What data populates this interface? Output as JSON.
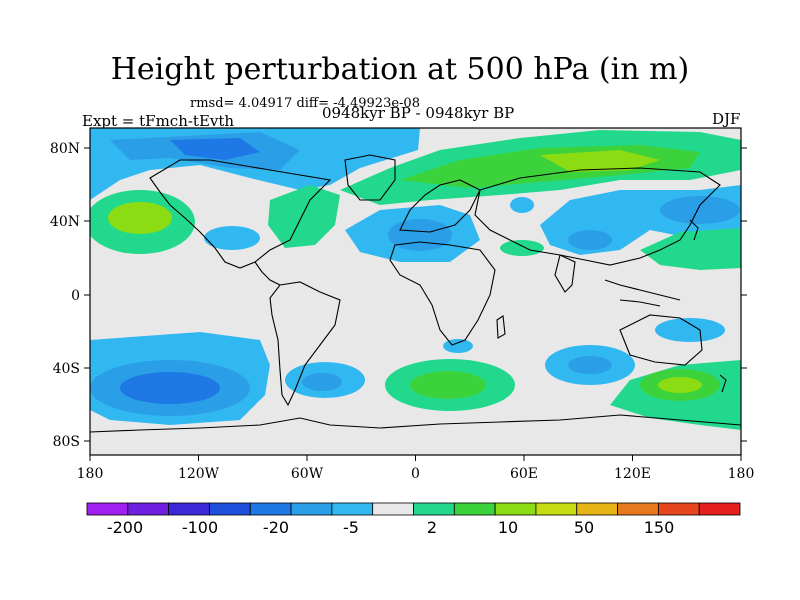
{
  "map": {
    "title": "Height perturbation at 500 hPa (in m)",
    "rmsd_text": "rmsd= 4.04917 diff= -4.49923e-08",
    "experiment_label": "Expt = tFmch-tEvth",
    "period_label": "0948kyr BP - 0948kyr BP",
    "season_label": "DJF",
    "lat_ticks": [
      "80N",
      "40N",
      "0",
      "40S",
      "80S"
    ],
    "lon_ticks": [
      "180",
      "120W",
      "60W",
      "0",
      "60E",
      "120E",
      "180"
    ],
    "background_color": "#e8e8e8"
  },
  "colorbar": {
    "labels": [
      "-200",
      "-100",
      "-20",
      "-5",
      "2",
      "10",
      "50",
      "150"
    ],
    "colors": [
      "#a020f0",
      "#7020e0",
      "#3c28d8",
      "#1e50dc",
      "#1e78e6",
      "#2b9ee8",
      "#32b8f0",
      "#e8e8e8",
      "#22d88c",
      "#3cd23c",
      "#8cdc14",
      "#c8dc14",
      "#e6b414",
      "#e6781e",
      "#e6461e",
      "#e61e1e"
    ]
  }
}
